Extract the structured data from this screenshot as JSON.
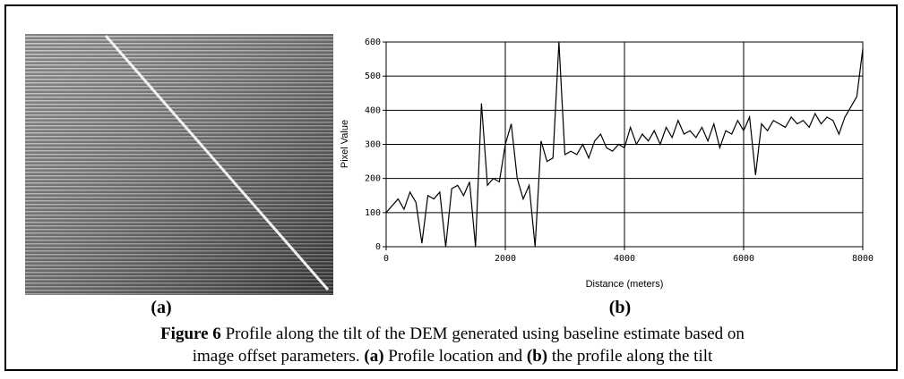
{
  "panels": {
    "a": "(a)",
    "b": "(b)"
  },
  "caption": {
    "lines": [
      [
        {
          "text": "Figure 6",
          "bold": true
        },
        {
          "text": " Profile along the tilt of the DEM generated using baseline estimate based on",
          "bold": false
        }
      ],
      [
        {
          "text": "image offset parameters. ",
          "bold": false
        },
        {
          "text": "(a)",
          "bold": true
        },
        {
          "text": " Profile location and ",
          "bold": false
        },
        {
          "text": "(b)",
          "bold": true
        },
        {
          "text": " the profile along the tilt",
          "bold": false
        }
      ]
    ]
  },
  "chart_data": {
    "type": "line",
    "xlabel": "Distance (meters)",
    "ylabel": "Pixel Value",
    "xlim": [
      0,
      8000
    ],
    "ylim": [
      0,
      600
    ],
    "xticks": [
      0,
      2000,
      4000,
      6000,
      8000
    ],
    "yticks": [
      0,
      100,
      200,
      300,
      400,
      500,
      600
    ],
    "grid": true,
    "x": [
      0,
      100,
      200,
      300,
      400,
      500,
      600,
      700,
      800,
      900,
      1000,
      1100,
      1200,
      1300,
      1400,
      1500,
      1600,
      1700,
      1800,
      1900,
      2000,
      2100,
      2200,
      2300,
      2400,
      2500,
      2600,
      2700,
      2800,
      2900,
      3000,
      3100,
      3200,
      3300,
      3400,
      3500,
      3600,
      3700,
      3800,
      3900,
      4000,
      4100,
      4200,
      4300,
      4400,
      4500,
      4600,
      4700,
      4800,
      4900,
      5000,
      5100,
      5200,
      5300,
      5400,
      5500,
      5600,
      5700,
      5800,
      5900,
      6000,
      6100,
      6200,
      6300,
      6400,
      6500,
      6600,
      6700,
      6800,
      6900,
      7000,
      7100,
      7200,
      7300,
      7400,
      7500,
      7600,
      7700,
      7800,
      7900,
      8000
    ],
    "series": [
      {
        "color": "#000000",
        "values": [
          100,
          120,
          140,
          110,
          160,
          130,
          10,
          150,
          140,
          160,
          0,
          170,
          180,
          150,
          190,
          0,
          420,
          180,
          200,
          190,
          300,
          360,
          200,
          140,
          180,
          0,
          310,
          250,
          260,
          600,
          270,
          280,
          270,
          300,
          260,
          310,
          330,
          290,
          280,
          300,
          290,
          350,
          300,
          330,
          310,
          340,
          300,
          350,
          320,
          370,
          330,
          340,
          320,
          350,
          310,
          360,
          290,
          340,
          330,
          370,
          340,
          380,
          210,
          360,
          340,
          370,
          360,
          350,
          380,
          360,
          370,
          350,
          390,
          360,
          380,
          370,
          330,
          380,
          410,
          440,
          580
        ]
      }
    ]
  }
}
